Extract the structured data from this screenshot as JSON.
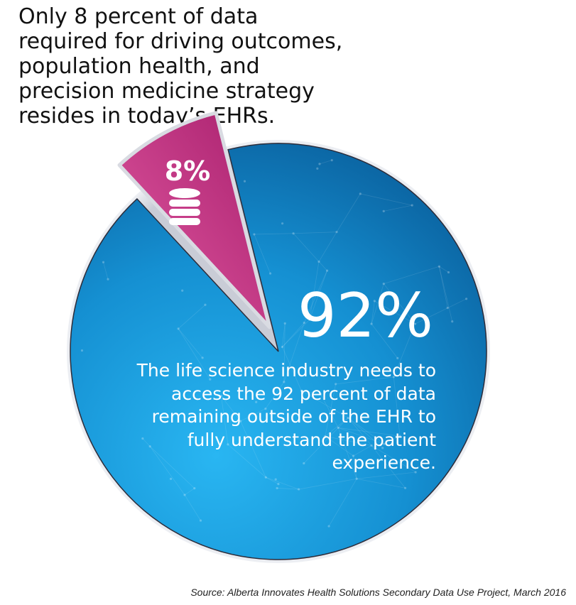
{
  "headline": "Only 8 percent of data required for driving outcomes, population health, and precision medicine strategy resides in today’s EHRs.",
  "callout": "The life science industry needs to access the 92 percent of data remaining outside of the EHR to fully understand the patient experience.",
  "source": "Source: Alberta Innovates Health Solutions Secondary Data Use Project, March 2016",
  "icons": {
    "small_slice": "database-icon"
  },
  "colors": {
    "large_slice": "#1a8fd3",
    "small_slice": "#c0307f",
    "text": "#ffffff"
  },
  "chart_data": {
    "type": "pie",
    "labels": [
      "8%",
      "92%"
    ],
    "values": [
      8,
      92
    ]
  }
}
